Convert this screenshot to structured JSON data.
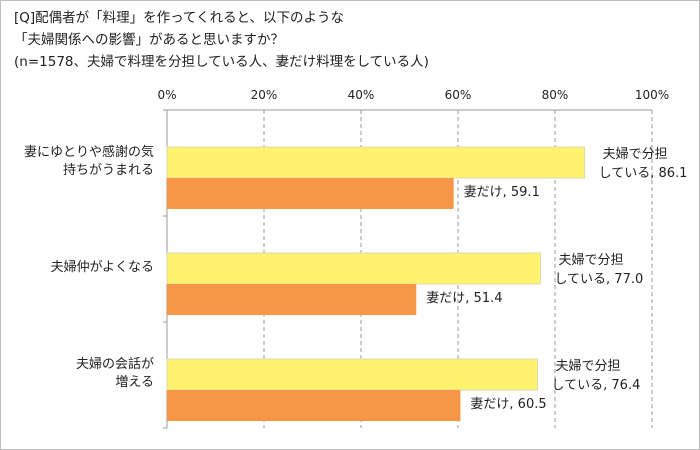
{
  "chart_data": {
    "type": "bar",
    "orientation": "horizontal",
    "title_lines": [
      "[Q]配偶者が「料理」を作ってくれると、以下のような",
      "「夫婦関係への影響」があると思いますか？",
      "(n=1578、夫婦で料理を分担している人、妻だけ料理をしている人)"
    ],
    "categories": [
      [
        "妻にゆとりや感謝の気",
        "持ちがうまれる"
      ],
      [
        "夫婦仲がよくなる"
      ],
      [
        "夫婦の会話が",
        "増える"
      ]
    ],
    "series": [
      {
        "name": "夫婦で分担している",
        "label_lines": [
          "夫婦で分担",
          "している"
        ],
        "color": "#FFF36E",
        "values": [
          86.1,
          77.0,
          76.4
        ]
      },
      {
        "name": "妻だけ",
        "label_lines": [
          "妻だけ"
        ],
        "color": "#F79646",
        "values": [
          59.1,
          51.4,
          60.5
        ]
      }
    ],
    "value_labels": [
      [
        "86.1",
        "77.0",
        "76.4"
      ],
      [
        "59.1",
        "51.4",
        "60.5"
      ]
    ],
    "xlim": [
      0,
      100
    ],
    "xticks": [
      "0%",
      "20%",
      "40%",
      "60%",
      "80%",
      "100%"
    ],
    "grid": "vertical dashed",
    "axis_position": "top"
  }
}
